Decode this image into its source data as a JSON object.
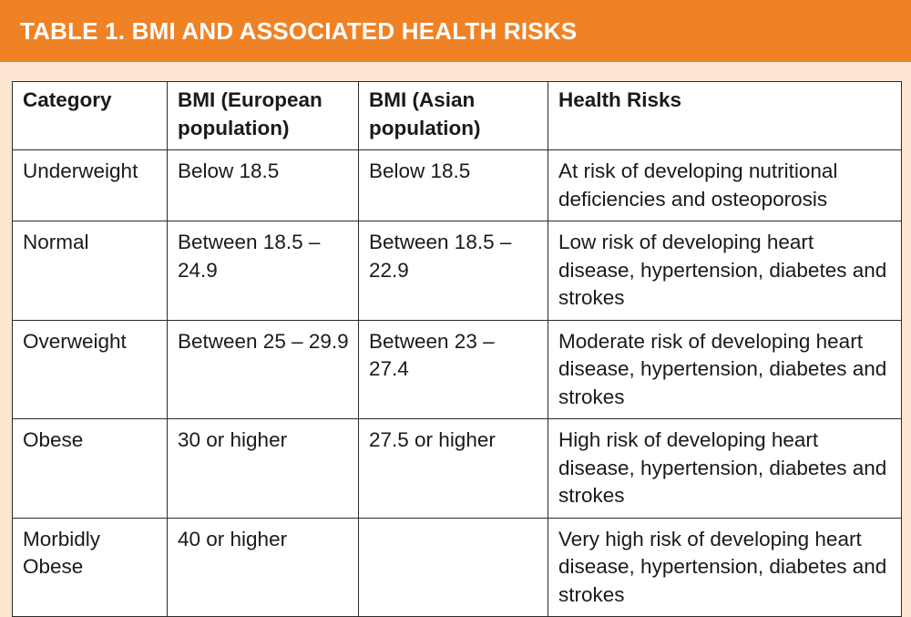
{
  "header": {
    "title": "TABLE 1. BMI AND ASSOCIATED HEALTH RISKS"
  },
  "colors": {
    "banner": "#f08226",
    "background": "#fde6d2",
    "table_bg": "#ffffff",
    "border": "#2b2b2b"
  },
  "table": {
    "columns": [
      "Category",
      "BMI (European population)",
      "BMI (Asian population)",
      "Health Risks"
    ],
    "rows": [
      {
        "category": "Underweight",
        "bmi_european": "Below 18.5",
        "bmi_asian": "Below 18.5",
        "health_risks": "At risk of developing nutritional deficiencies and osteoporosis"
      },
      {
        "category": "Normal",
        "bmi_european": "Between 18.5 – 24.9",
        "bmi_asian": "Between 18.5 – 22.9",
        "health_risks": "Low risk of developing heart disease, hypertension, diabetes and strokes"
      },
      {
        "category": "Overweight",
        "bmi_european": "Between 25 – 29.9",
        "bmi_asian": "Between 23 – 27.4",
        "health_risks": "Moderate risk of developing heart disease, hypertension, diabetes and strokes"
      },
      {
        "category": "Obese",
        "bmi_european": "30 or higher",
        "bmi_asian": "27.5 or higher",
        "health_risks": "High risk of developing heart disease, hypertension, diabetes and strokes"
      },
      {
        "category": "Morbidly Obese",
        "bmi_european": "40 or higher",
        "bmi_asian": "",
        "health_risks": "Very high risk of developing heart disease, hypertension, diabetes and strokes"
      }
    ]
  }
}
